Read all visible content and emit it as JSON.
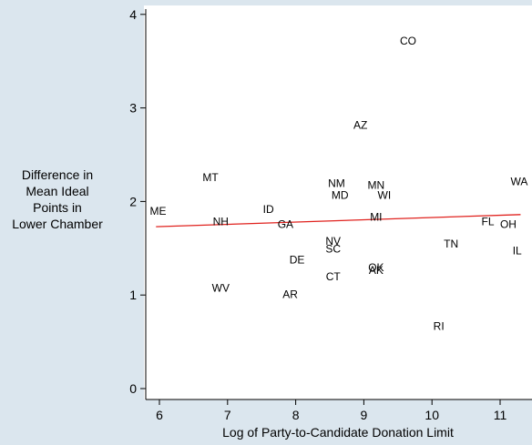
{
  "chart_data": {
    "type": "scatter",
    "xlabel": "Log of Party-to-Candidate Donation Limit",
    "ylabel_lines": [
      "Difference in",
      "Mean Ideal",
      "Points in",
      "Lower Chamber"
    ],
    "xlim": [
      5.8,
      11.4
    ],
    "ylim": [
      -0.1,
      4.1
    ],
    "xticks": [
      6,
      7,
      8,
      9,
      10,
      11
    ],
    "yticks": [
      0,
      1,
      2,
      3,
      4
    ],
    "grid": false,
    "legend": "none",
    "points": [
      {
        "label": "CO",
        "x": 9.65,
        "y": 3.72
      },
      {
        "label": "AZ",
        "x": 8.95,
        "y": 2.82
      },
      {
        "label": "MT",
        "x": 6.75,
        "y": 2.26
      },
      {
        "label": "WA",
        "x": 11.28,
        "y": 2.22
      },
      {
        "label": "NM",
        "x": 8.6,
        "y": 2.2
      },
      {
        "label": "MN",
        "x": 9.18,
        "y": 2.18
      },
      {
        "label": "MD",
        "x": 8.65,
        "y": 2.07
      },
      {
        "label": "WI",
        "x": 9.3,
        "y": 2.07
      },
      {
        "label": "ID",
        "x": 7.6,
        "y": 1.92
      },
      {
        "label": "ME",
        "x": 5.98,
        "y": 1.9
      },
      {
        "label": "MI",
        "x": 9.18,
        "y": 1.84
      },
      {
        "label": "NH",
        "x": 6.9,
        "y": 1.79
      },
      {
        "label": "FL",
        "x": 10.82,
        "y": 1.79
      },
      {
        "label": "GA",
        "x": 7.85,
        "y": 1.76
      },
      {
        "label": "OH",
        "x": 11.12,
        "y": 1.76
      },
      {
        "label": "NV",
        "x": 8.55,
        "y": 1.58
      },
      {
        "label": "TN",
        "x": 10.28,
        "y": 1.55
      },
      {
        "label": "SC",
        "x": 8.55,
        "y": 1.5
      },
      {
        "label": "IL",
        "x": 11.25,
        "y": 1.48
      },
      {
        "label": "DE",
        "x": 8.02,
        "y": 1.38
      },
      {
        "label": "OK",
        "x": 9.18,
        "y": 1.3
      },
      {
        "label": "AK",
        "x": 9.18,
        "y": 1.27
      },
      {
        "label": "CT",
        "x": 8.55,
        "y": 1.2
      },
      {
        "label": "WV",
        "x": 6.9,
        "y": 1.08
      },
      {
        "label": "AR",
        "x": 7.92,
        "y": 1.01
      },
      {
        "label": "RI",
        "x": 10.1,
        "y": 0.67
      }
    ],
    "fit_line": {
      "x": [
        5.95,
        11.3
      ],
      "y": [
        1.73,
        1.86
      ],
      "color": "#e0221e"
    }
  },
  "colors": {
    "figure_bg": "#dbe6ee",
    "plot_bg": "#ffffff",
    "axis": "#000000",
    "label_text": "#000000"
  }
}
